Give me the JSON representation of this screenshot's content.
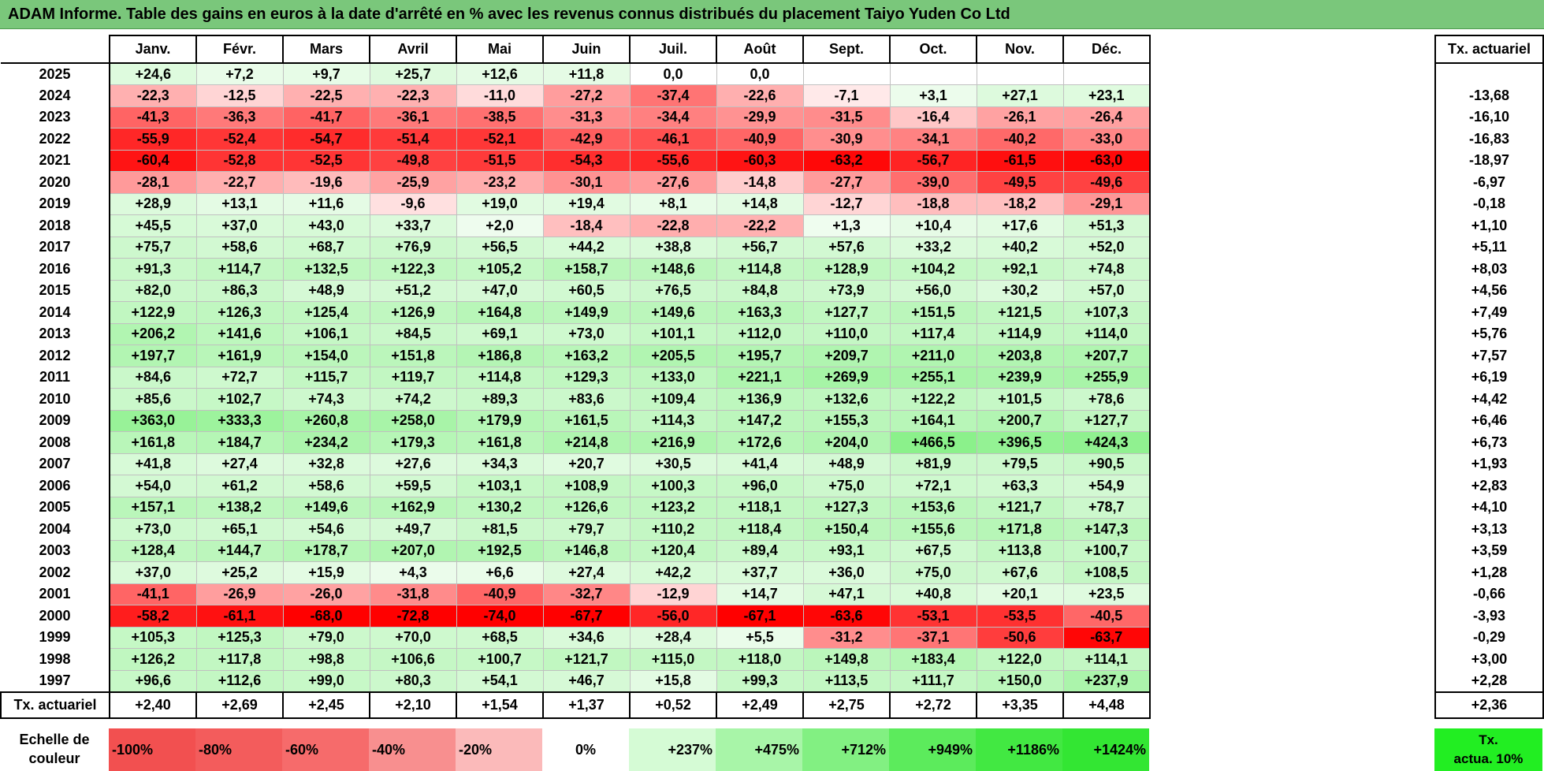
{
  "title": "ADAM Informe. Table des gains en euros à la date d'arrêté en % avec les revenus connus distribués du placement Taiyo Yuden Co Ltd",
  "months": [
    "Janv.",
    "Févr.",
    "Mars",
    "Avril",
    "Mai",
    "Juin",
    "Juil.",
    "Août",
    "Sept.",
    "Oct.",
    "Nov.",
    "Déc."
  ],
  "tx_header": "Tx. actuariel",
  "rows": [
    {
      "year": "2025",
      "values": [
        "+24,6",
        "+7,2",
        "+9,7",
        "+25,7",
        "+12,6",
        "+11,8",
        "0,0",
        "0,0",
        "",
        "",
        "",
        ""
      ],
      "tx": ""
    },
    {
      "year": "2024",
      "values": [
        "-22,3",
        "-12,5",
        "-22,5",
        "-22,3",
        "-11,0",
        "-27,2",
        "-37,4",
        "-22,6",
        "-7,1",
        "+3,1",
        "+27,1",
        "+23,1"
      ],
      "tx": "-13,68"
    },
    {
      "year": "2023",
      "values": [
        "-41,3",
        "-36,3",
        "-41,7",
        "-36,1",
        "-38,5",
        "-31,3",
        "-34,4",
        "-29,9",
        "-31,5",
        "-16,4",
        "-26,1",
        "-26,4"
      ],
      "tx": "-16,10"
    },
    {
      "year": "2022",
      "values": [
        "-55,9",
        "-52,4",
        "-54,7",
        "-51,4",
        "-52,1",
        "-42,9",
        "-46,1",
        "-40,9",
        "-30,9",
        "-34,1",
        "-40,2",
        "-33,0"
      ],
      "tx": "-16,83"
    },
    {
      "year": "2021",
      "values": [
        "-60,4",
        "-52,8",
        "-52,5",
        "-49,8",
        "-51,5",
        "-54,3",
        "-55,6",
        "-60,3",
        "-63,2",
        "-56,7",
        "-61,5",
        "-63,0"
      ],
      "tx": "-18,97"
    },
    {
      "year": "2020",
      "values": [
        "-28,1",
        "-22,7",
        "-19,6",
        "-25,9",
        "-23,2",
        "-30,1",
        "-27,6",
        "-14,8",
        "-27,7",
        "-39,0",
        "-49,5",
        "-49,6"
      ],
      "tx": "-6,97"
    },
    {
      "year": "2019",
      "values": [
        "+28,9",
        "+13,1",
        "+11,6",
        "-9,6",
        "+19,0",
        "+19,4",
        "+8,1",
        "+14,8",
        "-12,7",
        "-18,8",
        "-18,2",
        "-29,1"
      ],
      "tx": "-0,18"
    },
    {
      "year": "2018",
      "values": [
        "+45,5",
        "+37,0",
        "+43,0",
        "+33,7",
        "+2,0",
        "-18,4",
        "-22,8",
        "-22,2",
        "+1,3",
        "+10,4",
        "+17,6",
        "+51,3"
      ],
      "tx": "+1,10"
    },
    {
      "year": "2017",
      "values": [
        "+75,7",
        "+58,6",
        "+68,7",
        "+76,9",
        "+56,5",
        "+44,2",
        "+38,8",
        "+56,7",
        "+57,6",
        "+33,2",
        "+40,2",
        "+52,0"
      ],
      "tx": "+5,11"
    },
    {
      "year": "2016",
      "values": [
        "+91,3",
        "+114,7",
        "+132,5",
        "+122,3",
        "+105,2",
        "+158,7",
        "+148,6",
        "+114,8",
        "+128,9",
        "+104,2",
        "+92,1",
        "+74,8"
      ],
      "tx": "+8,03"
    },
    {
      "year": "2015",
      "values": [
        "+82,0",
        "+86,3",
        "+48,9",
        "+51,2",
        "+47,0",
        "+60,5",
        "+76,5",
        "+84,8",
        "+73,9",
        "+56,0",
        "+30,2",
        "+57,0"
      ],
      "tx": "+4,56"
    },
    {
      "year": "2014",
      "values": [
        "+122,9",
        "+126,3",
        "+125,4",
        "+126,9",
        "+164,8",
        "+149,9",
        "+149,6",
        "+163,3",
        "+127,7",
        "+151,5",
        "+121,5",
        "+107,3"
      ],
      "tx": "+7,49"
    },
    {
      "year": "2013",
      "values": [
        "+206,2",
        "+141,6",
        "+106,1",
        "+84,5",
        "+69,1",
        "+73,0",
        "+101,1",
        "+112,0",
        "+110,0",
        "+117,4",
        "+114,9",
        "+114,0"
      ],
      "tx": "+5,76"
    },
    {
      "year": "2012",
      "values": [
        "+197,7",
        "+161,9",
        "+154,0",
        "+151,8",
        "+186,8",
        "+163,2",
        "+205,5",
        "+195,7",
        "+209,7",
        "+211,0",
        "+203,8",
        "+207,7"
      ],
      "tx": "+7,57"
    },
    {
      "year": "2011",
      "values": [
        "+84,6",
        "+72,7",
        "+115,7",
        "+119,7",
        "+114,8",
        "+129,3",
        "+133,0",
        "+221,1",
        "+269,9",
        "+255,1",
        "+239,9",
        "+255,9"
      ],
      "tx": "+6,19"
    },
    {
      "year": "2010",
      "values": [
        "+85,6",
        "+102,7",
        "+74,3",
        "+74,2",
        "+89,3",
        "+83,6",
        "+109,4",
        "+136,9",
        "+132,6",
        "+122,2",
        "+101,5",
        "+78,6"
      ],
      "tx": "+4,42"
    },
    {
      "year": "2009",
      "values": [
        "+363,0",
        "+333,3",
        "+260,8",
        "+258,0",
        "+179,9",
        "+161,5",
        "+114,3",
        "+147,2",
        "+155,3",
        "+164,1",
        "+200,7",
        "+127,7"
      ],
      "tx": "+6,46"
    },
    {
      "year": "2008",
      "values": [
        "+161,8",
        "+184,7",
        "+234,2",
        "+179,3",
        "+161,8",
        "+214,8",
        "+216,9",
        "+172,6",
        "+204,0",
        "+466,5",
        "+396,5",
        "+424,3"
      ],
      "tx": "+6,73"
    },
    {
      "year": "2007",
      "values": [
        "+41,8",
        "+27,4",
        "+32,8",
        "+27,6",
        "+34,3",
        "+20,7",
        "+30,5",
        "+41,4",
        "+48,9",
        "+81,9",
        "+79,5",
        "+90,5"
      ],
      "tx": "+1,93"
    },
    {
      "year": "2006",
      "values": [
        "+54,0",
        "+61,2",
        "+58,6",
        "+59,5",
        "+103,1",
        "+108,9",
        "+100,3",
        "+96,0",
        "+75,0",
        "+72,1",
        "+63,3",
        "+54,9"
      ],
      "tx": "+2,83"
    },
    {
      "year": "2005",
      "values": [
        "+157,1",
        "+138,2",
        "+149,6",
        "+162,9",
        "+130,2",
        "+126,6",
        "+123,2",
        "+118,1",
        "+127,3",
        "+153,6",
        "+121,7",
        "+78,7"
      ],
      "tx": "+4,10"
    },
    {
      "year": "2004",
      "values": [
        "+73,0",
        "+65,1",
        "+54,6",
        "+49,7",
        "+81,5",
        "+79,7",
        "+110,2",
        "+118,4",
        "+150,4",
        "+155,6",
        "+171,8",
        "+147,3"
      ],
      "tx": "+3,13"
    },
    {
      "year": "2003",
      "values": [
        "+128,4",
        "+144,7",
        "+178,7",
        "+207,0",
        "+192,5",
        "+146,8",
        "+120,4",
        "+89,4",
        "+93,1",
        "+67,5",
        "+113,8",
        "+100,7"
      ],
      "tx": "+3,59"
    },
    {
      "year": "2002",
      "values": [
        "+37,0",
        "+25,2",
        "+15,9",
        "+4,3",
        "+6,6",
        "+27,4",
        "+42,2",
        "+37,7",
        "+36,0",
        "+75,0",
        "+67,6",
        "+108,5"
      ],
      "tx": "+1,28"
    },
    {
      "year": "2001",
      "values": [
        "-41,1",
        "-26,9",
        "-26,0",
        "-31,8",
        "-40,9",
        "-32,7",
        "-12,9",
        "+14,7",
        "+47,1",
        "+40,8",
        "+20,1",
        "+23,5"
      ],
      "tx": "-0,66"
    },
    {
      "year": "2000",
      "values": [
        "-58,2",
        "-61,1",
        "-68,0",
        "-72,8",
        "-74,0",
        "-67,7",
        "-56,0",
        "-67,1",
        "-63,6",
        "-53,1",
        "-53,5",
        "-40,5"
      ],
      "tx": "-3,93"
    },
    {
      "year": "1999",
      "values": [
        "+105,3",
        "+125,3",
        "+79,0",
        "+70,0",
        "+68,5",
        "+34,6",
        "+28,4",
        "+5,5",
        "-31,2",
        "-37,1",
        "-50,6",
        "-63,7"
      ],
      "tx": "-0,29"
    },
    {
      "year": "1998",
      "values": [
        "+126,2",
        "+117,8",
        "+98,8",
        "+106,6",
        "+100,7",
        "+121,7",
        "+115,0",
        "+118,0",
        "+149,8",
        "+183,4",
        "+122,0",
        "+114,1"
      ],
      "tx": "+3,00"
    },
    {
      "year": "1997",
      "values": [
        "+96,6",
        "+112,6",
        "+99,0",
        "+80,3",
        "+54,1",
        "+46,7",
        "+15,8",
        "+99,3",
        "+113,5",
        "+111,7",
        "+150,0",
        "+237,9"
      ],
      "tx": "+2,28"
    }
  ],
  "footer": {
    "label": "Tx. actuariel",
    "values": [
      "+2,40",
      "+2,69",
      "+2,45",
      "+2,10",
      "+1,54",
      "+1,37",
      "+0,52",
      "+2,49",
      "+2,75",
      "+2,72",
      "+3,35",
      "+4,48"
    ],
    "tx": "+2,36"
  },
  "legend": {
    "label_line1": "Echelle de",
    "label_line2": "couleur",
    "steps": [
      {
        "label": "-100%",
        "color": "#f25050",
        "kind": "neg"
      },
      {
        "label": "-80%",
        "color": "#f35c5c",
        "kind": "neg"
      },
      {
        "label": "-60%",
        "color": "#f66b6b",
        "kind": "neg"
      },
      {
        "label": "-40%",
        "color": "#f88f8f",
        "kind": "neg"
      },
      {
        "label": "-20%",
        "color": "#fbbaba",
        "kind": "neg"
      },
      {
        "label": "0%",
        "color": "#ffffff",
        "kind": "mid"
      },
      {
        "label": "+237%",
        "color": "#d5fbd5",
        "kind": "pos"
      },
      {
        "label": "+475%",
        "color": "#a8f5a8",
        "kind": "pos"
      },
      {
        "label": "+712%",
        "color": "#82f082",
        "kind": "pos"
      },
      {
        "label": "+949%",
        "color": "#5ceb5c",
        "kind": "pos"
      },
      {
        "label": "+1186%",
        "color": "#42e842",
        "kind": "pos"
      },
      {
        "label": "+1424%",
        "color": "#33e633",
        "kind": "pos"
      }
    ],
    "actua_line1": "Tx.",
    "actua_line2": "actua. 10%",
    "actua_color": "#22ee22"
  }
}
